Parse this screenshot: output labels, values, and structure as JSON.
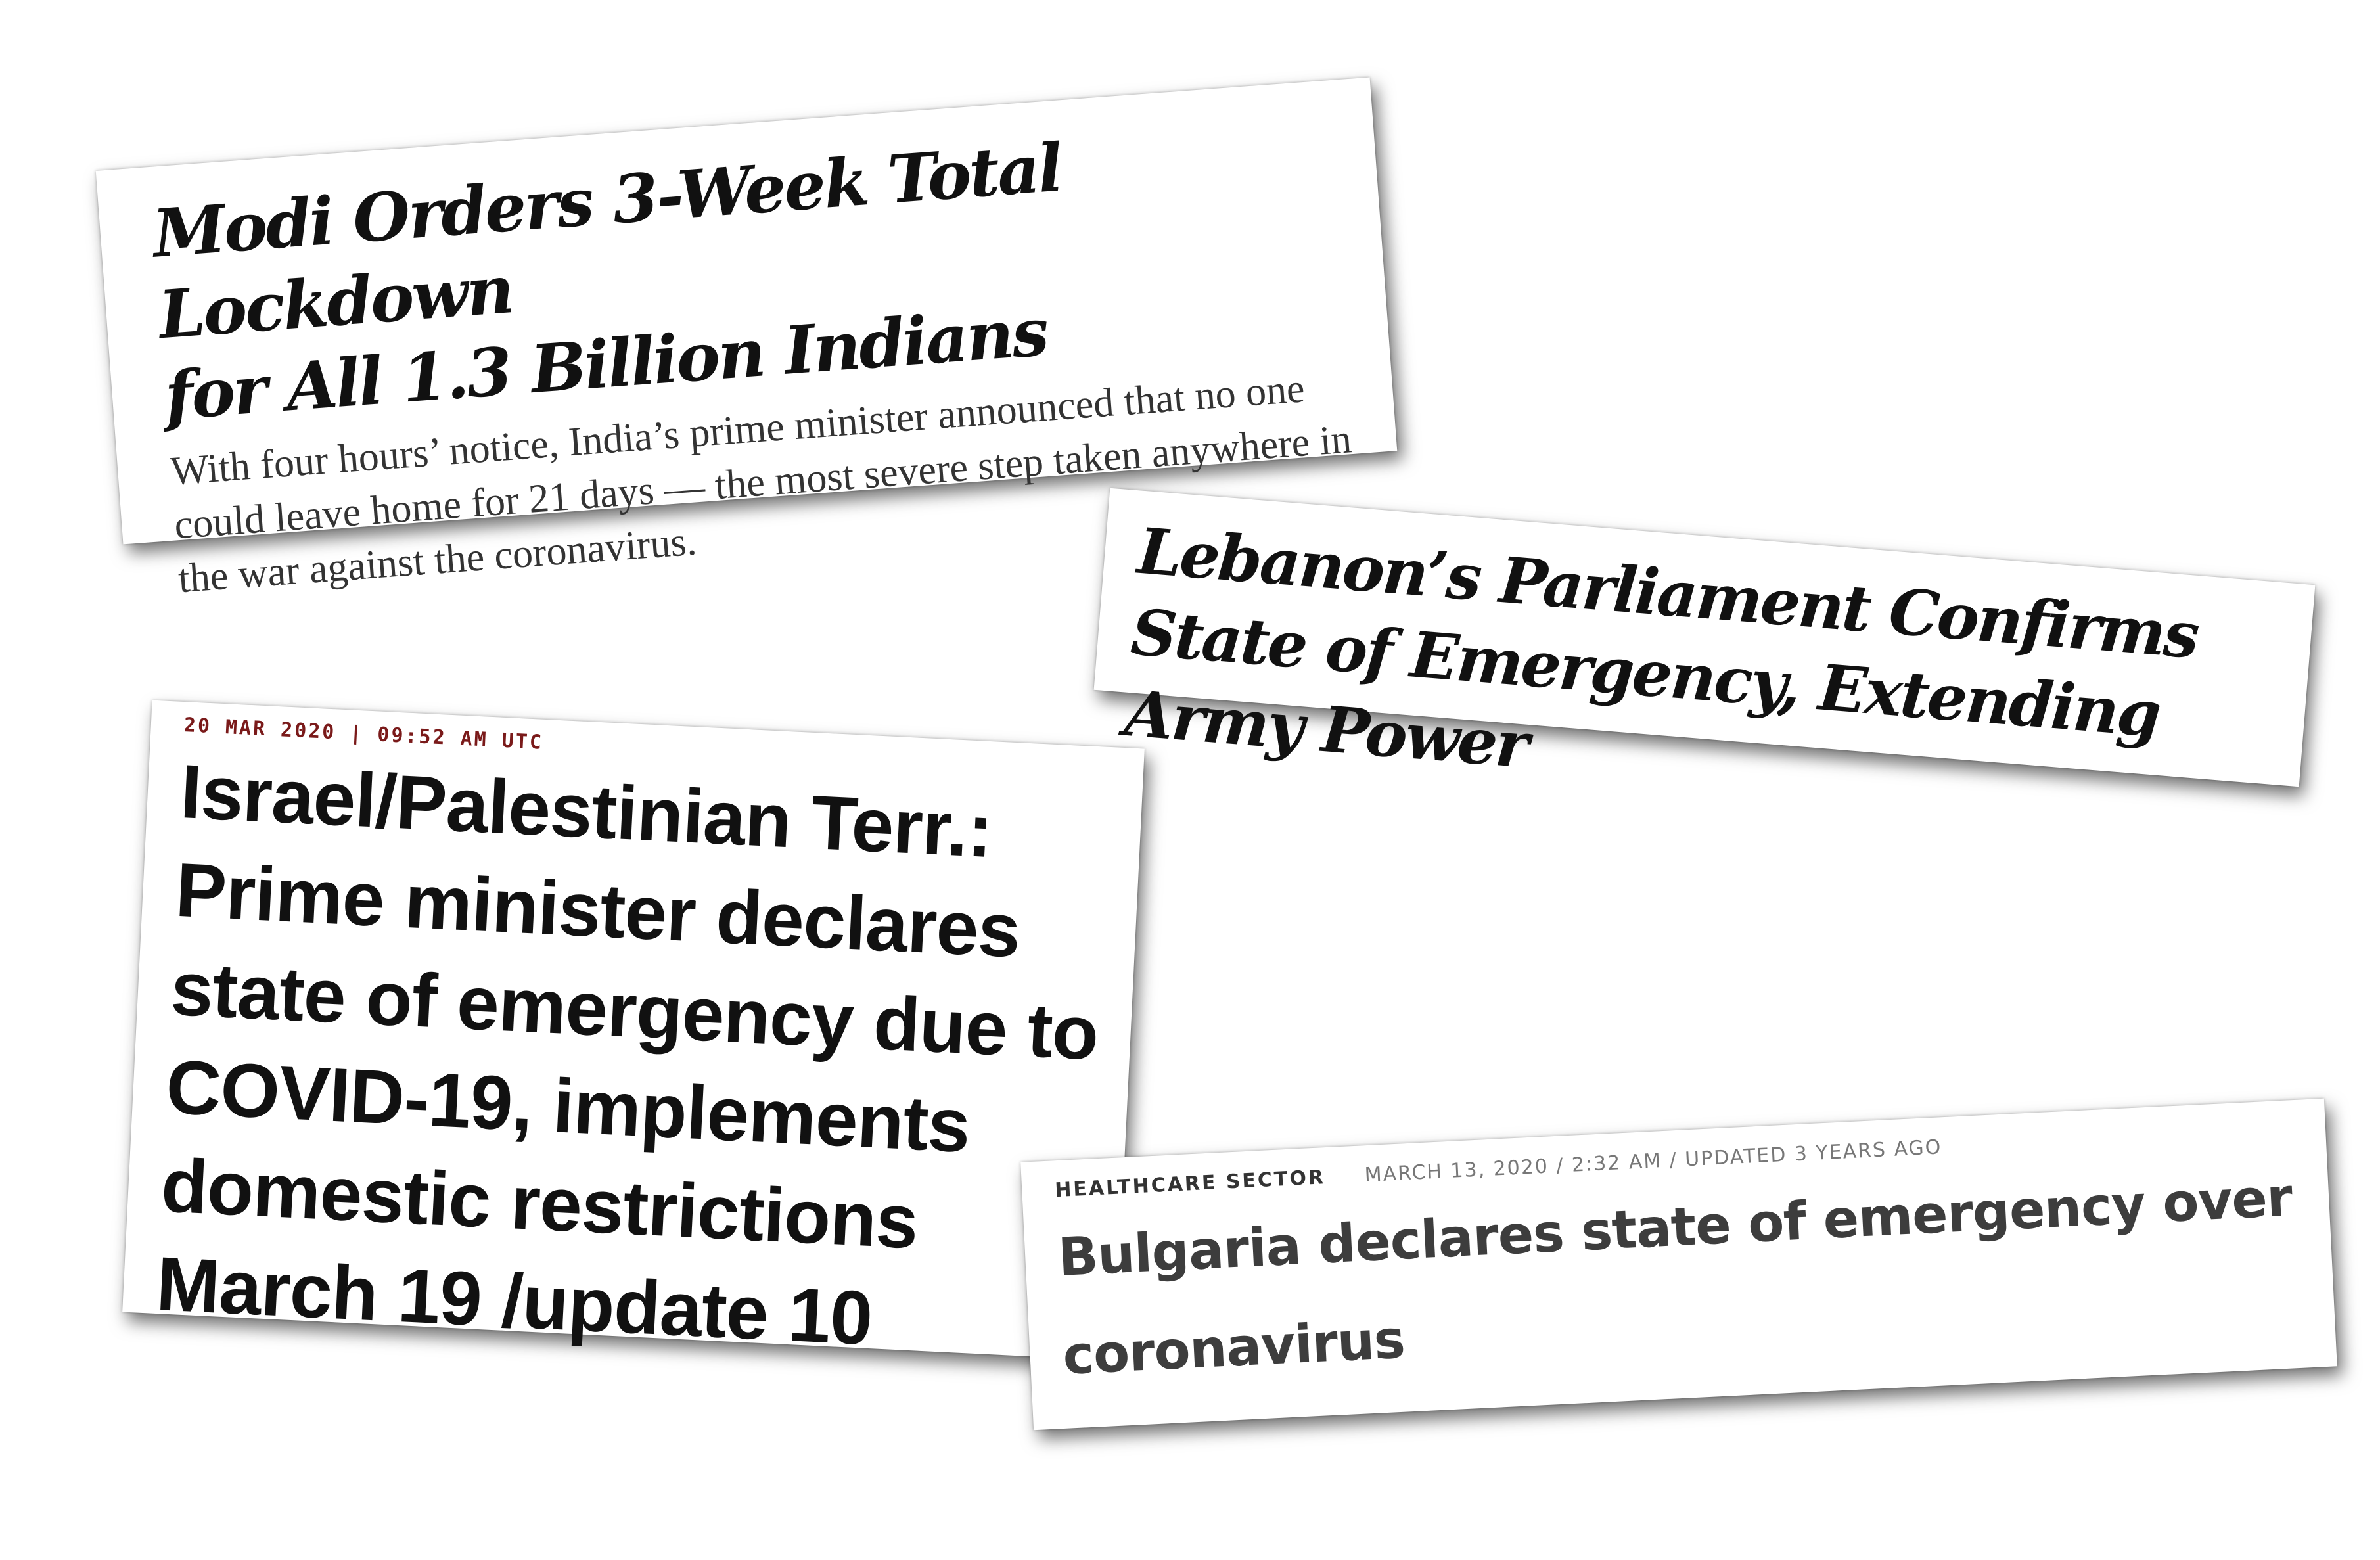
{
  "clippings": {
    "modi": {
      "headline_line1": "Modi Orders 3-Week Total Lockdown",
      "headline_line2": "for All 1.3 Billion Indians",
      "summary": "With four hours’ notice, India’s prime minister announced that no one could leave home for 21 days — the most severe step taken anywhere in the war against the coronavirus."
    },
    "lebanon": {
      "headline": "Lebanon’s Parliament Confirms State of Emergency, Extending Army Power"
    },
    "israel": {
      "dateline": "20 MAR 2020 | 09:52 AM UTC",
      "headline": "Israel/Palestinian Terr.: Prime minister declares state of emergency due to COVID-19, implements domestic restrictions March 19 /update 10"
    },
    "bulgaria": {
      "section": "HEALTHCARE SECTOR",
      "timestamp": "MARCH 13, 2020 / 2:32 AM / UPDATED 3 YEARS AGO",
      "headline": "Bulgaria declares state of emergency over coronavirus"
    }
  }
}
